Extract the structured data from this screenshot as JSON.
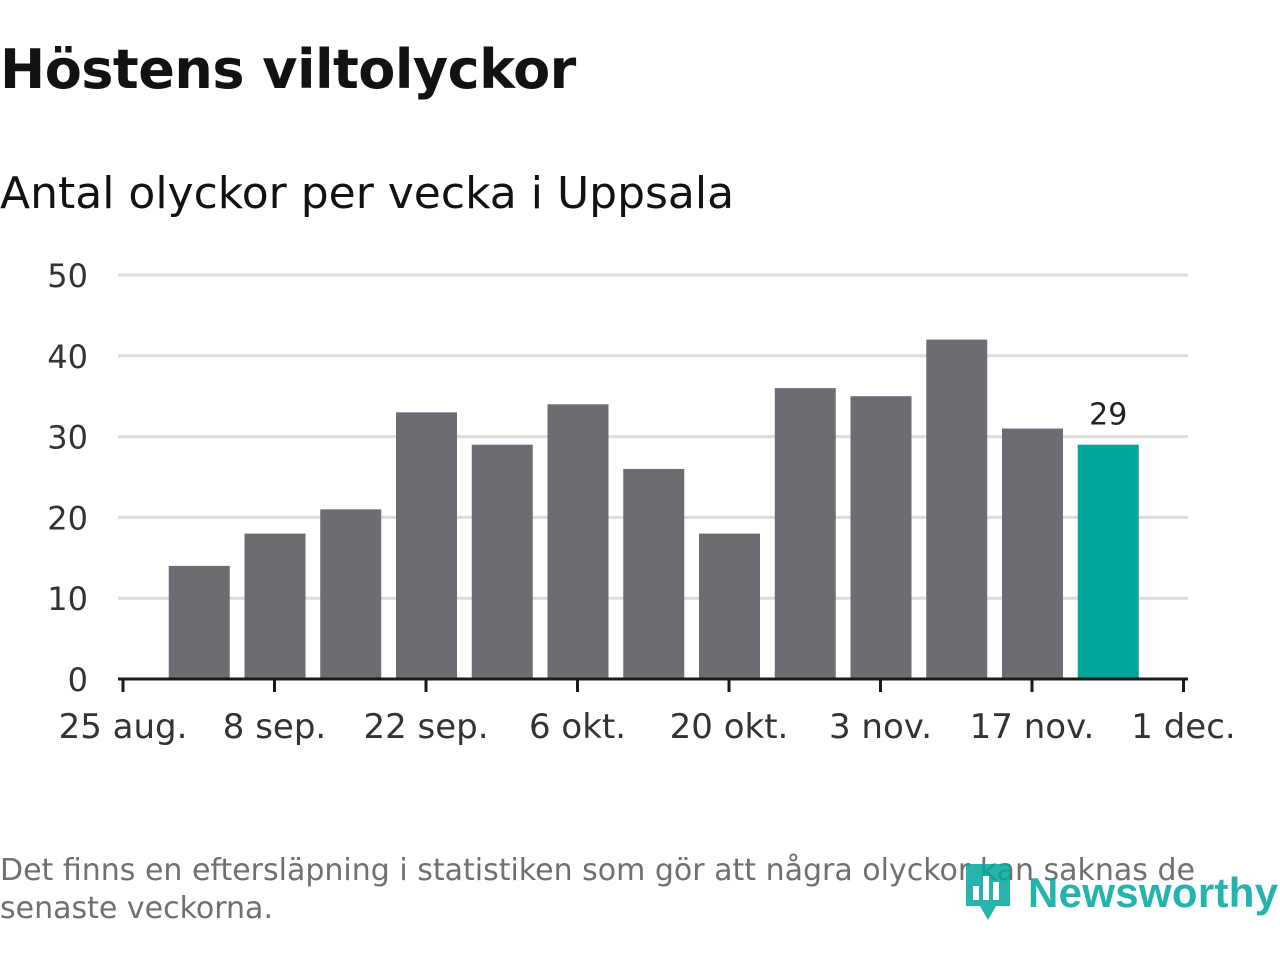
{
  "colors": {
    "bar": "#6d6c72",
    "highlight": "#00a59b",
    "grid": "#dcdcdc",
    "axis": "#1a1a1a",
    "brand": "#00a79d"
  },
  "chart_data": {
    "type": "bar",
    "title": "Höstens viltolyckor",
    "subtitle": "Antal olyckor per vecka i Uppsala",
    "xlabel": "",
    "ylabel": "",
    "ylim": [
      0,
      50
    ],
    "yticks": [
      0,
      10,
      20,
      30,
      40,
      50
    ],
    "grid": true,
    "x_tick_labels": [
      "25 aug.",
      "8 sep.",
      "22 sep.",
      "6 okt.",
      "20 okt.",
      "3 nov.",
      "17 nov.",
      "1 dec."
    ],
    "series": [
      {
        "name": "Antal olyckor",
        "values": [
          14,
          18,
          21,
          33,
          29,
          34,
          26,
          18,
          36,
          35,
          42,
          31,
          29
        ]
      }
    ],
    "highlight_index": 12,
    "highlight_label": "29"
  },
  "footnote": "Det finns en eftersläpning i statistiken som gör att några olyckor kan saknas de senaste veckorna.",
  "brand": {
    "name": "Newsworthy",
    "icon": "newsworthy-logo-icon"
  }
}
